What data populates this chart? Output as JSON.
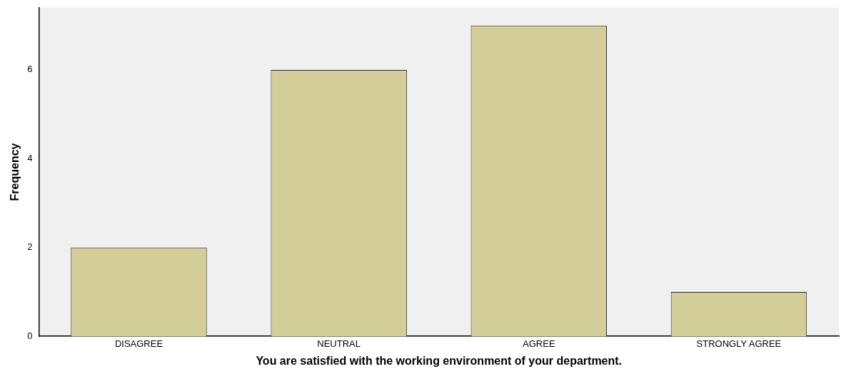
{
  "chart_data": {
    "type": "bar",
    "xlabel": "You are satisfied with the working environment of your department.",
    "ylabel": "Frequency",
    "categories": [
      "DISAGREE",
      "NEUTRAL",
      "AGREE",
      "STRONGLY AGREE"
    ],
    "values": [
      2,
      6,
      7,
      1
    ],
    "color": "#d3ce97",
    "ylim": [
      0,
      7.4
    ],
    "yticks": [
      0,
      2,
      4,
      6
    ],
    "grid": false,
    "legend": false
  }
}
